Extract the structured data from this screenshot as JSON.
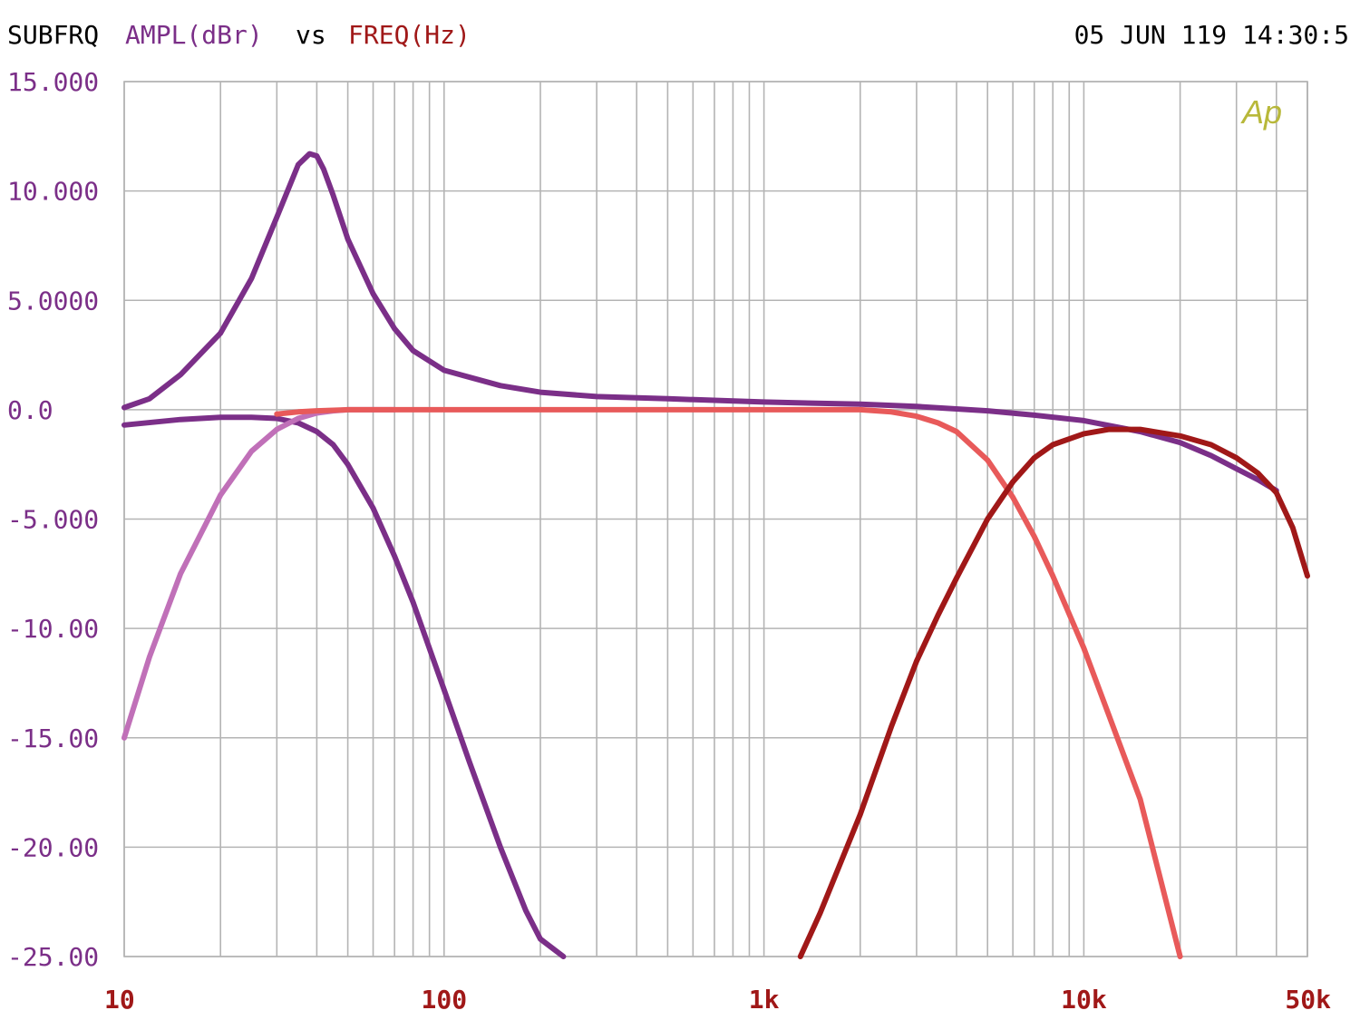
{
  "header": {
    "title_prefix": "SUBFRQ",
    "y_quantity": "AMPL(dBr)",
    "vs": "vs",
    "x_quantity": "FREQ(Hz)",
    "timestamp": "05 JUN 119 14:30:5",
    "logo": "Ap"
  },
  "colors": {
    "y_label": "#7b2f88",
    "x_label": "#a01818",
    "grid": "#b4b4b4",
    "logo": "#b8b83a"
  },
  "chart_data": {
    "type": "line",
    "title": "SUBFRQ AMPL(dBr) vs FREQ(Hz)",
    "xlabel": "FREQ(Hz)",
    "ylabel": "AMPL(dBr)",
    "x_scale": "log",
    "xlim": [
      10,
      50000
    ],
    "ylim": [
      -25,
      15
    ],
    "grid": true,
    "x_tick_labels": [
      {
        "value": 10,
        "label": "10"
      },
      {
        "value": 100,
        "label": "100"
      },
      {
        "value": 1000,
        "label": "1k"
      },
      {
        "value": 10000,
        "label": "10k"
      },
      {
        "value": 50000,
        "label": "50k"
      }
    ],
    "y_tick_labels": [
      {
        "value": 15,
        "label": "15.000"
      },
      {
        "value": 10,
        "label": "10.000"
      },
      {
        "value": 5,
        "label": "5.0000"
      },
      {
        "value": 0,
        "label": "0.0"
      },
      {
        "value": -5,
        "label": "-5.000"
      },
      {
        "value": -10,
        "label": "-10.00"
      },
      {
        "value": -15,
        "label": "-15.00"
      },
      {
        "value": -20,
        "label": "-20.00"
      },
      {
        "value": -25,
        "label": "-25.00"
      }
    ],
    "series": [
      {
        "color": "#7b2f88",
        "x": [
          10,
          12,
          15,
          20,
          25,
          30,
          35,
          38,
          40,
          42,
          45,
          50,
          60,
          70,
          80,
          100,
          150,
          200,
          300,
          500,
          1000,
          2000,
          3000,
          5000,
          7000,
          10000,
          15000,
          20000,
          25000,
          30000,
          35000,
          40000
        ],
        "y": [
          0.1,
          0.5,
          1.6,
          3.5,
          6.0,
          8.8,
          11.2,
          11.7,
          11.6,
          11.0,
          9.8,
          7.8,
          5.3,
          3.7,
          2.7,
          1.8,
          1.1,
          0.8,
          0.6,
          0.5,
          0.35,
          0.25,
          0.15,
          -0.05,
          -0.25,
          -0.5,
          -1.0,
          -1.5,
          -2.1,
          -2.7,
          -3.2,
          -3.7
        ]
      },
      {
        "color": "#7b2f88",
        "x": [
          10,
          15,
          20,
          25,
          30,
          35,
          40,
          45,
          50,
          60,
          70,
          80,
          100,
          120,
          150,
          180,
          200,
          236
        ],
        "y": [
          -0.7,
          -0.45,
          -0.35,
          -0.35,
          -0.4,
          -0.6,
          -1.0,
          -1.6,
          -2.5,
          -4.5,
          -6.7,
          -8.8,
          -12.8,
          -16.1,
          -20.0,
          -22.9,
          -24.2,
          -25.0
        ]
      },
      {
        "color": "#c070b8",
        "x": [
          10,
          12,
          15,
          20,
          25,
          30,
          35,
          40,
          45,
          50,
          60,
          70
        ],
        "y": [
          -15.0,
          -11.3,
          -7.5,
          -3.9,
          -1.9,
          -0.9,
          -0.4,
          -0.15,
          -0.05,
          0.0,
          0.0,
          0.0
        ]
      },
      {
        "color": "#e85a5a",
        "x": [
          30,
          35,
          40,
          50,
          70,
          100,
          300,
          1000,
          2000,
          2500,
          3000,
          3500,
          4000,
          5000,
          6000,
          7000,
          8000,
          10000,
          12000,
          15000,
          20000
        ],
        "y": [
          -0.2,
          -0.1,
          -0.05,
          0.0,
          0.0,
          0.0,
          0.0,
          0.0,
          0.0,
          -0.1,
          -0.3,
          -0.6,
          -1.0,
          -2.3,
          -4.0,
          -5.8,
          -7.6,
          -10.9,
          -14.0,
          -17.8,
          -25.0
        ]
      },
      {
        "color": "#a01818",
        "x": [
          1300,
          1500,
          2000,
          2500,
          3000,
          3500,
          4000,
          5000,
          6000,
          7000,
          8000,
          10000,
          12000,
          15000,
          20000,
          25000,
          30000,
          35000,
          40000,
          45000,
          50000
        ],
        "y": [
          -25.0,
          -23.0,
          -18.5,
          -14.5,
          -11.5,
          -9.4,
          -7.7,
          -5.0,
          -3.3,
          -2.2,
          -1.6,
          -1.1,
          -0.9,
          -0.9,
          -1.2,
          -1.6,
          -2.2,
          -2.9,
          -3.8,
          -5.4,
          -7.6
        ]
      }
    ]
  }
}
